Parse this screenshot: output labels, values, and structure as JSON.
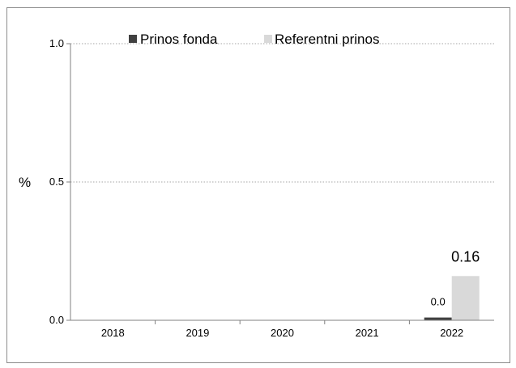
{
  "chart_data": {
    "type": "bar",
    "title": "",
    "xlabel": "",
    "ylabel": "%",
    "categories": [
      "2018",
      "2019",
      "2020",
      "2021",
      "2022"
    ],
    "series": [
      {
        "name": "Prinos fonda",
        "color": "#404040",
        "values": [
          null,
          null,
          null,
          null,
          0.01
        ],
        "labels": [
          null,
          null,
          null,
          null,
          "0.0"
        ]
      },
      {
        "name": "Referentni prinos",
        "color": "#d9d9d9",
        "values": [
          null,
          null,
          null,
          null,
          0.16
        ],
        "labels": [
          null,
          null,
          null,
          null,
          "0.16"
        ]
      }
    ],
    "ylim": [
      0,
      1.0
    ],
    "yticks": [
      "0.0",
      "0.5",
      "1.0"
    ],
    "grid": true,
    "legend_position": "top"
  }
}
